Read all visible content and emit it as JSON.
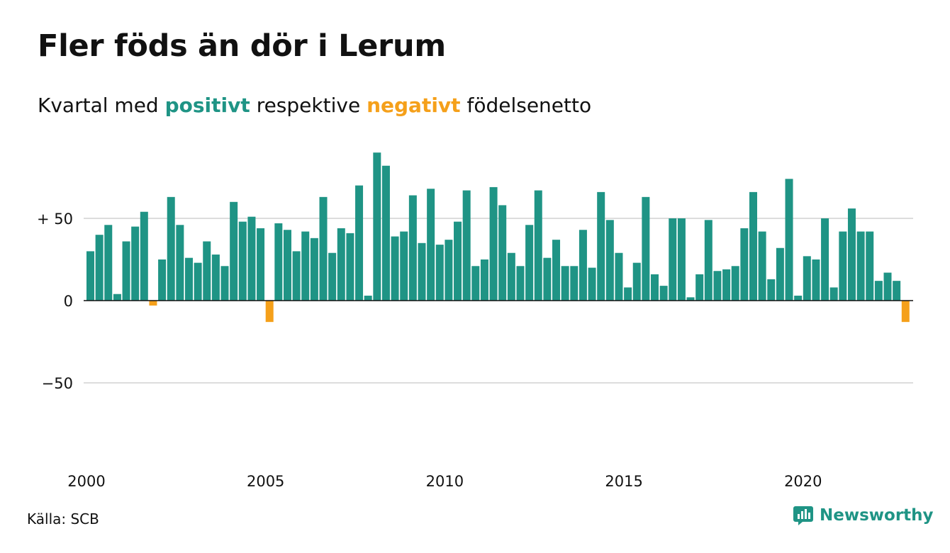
{
  "header": {
    "title": "Fler föds än dör i Lerum",
    "subtitle_prefix": "Kvartal med",
    "subtitle_positive": "positivt",
    "subtitle_middle": "respektive",
    "subtitle_negative": "negativt",
    "subtitle_suffix": "födelsenetto"
  },
  "footer": {
    "source": "Källa: SCB",
    "brand": "Newsworthy",
    "brand_icon": "newsworthy-logo-icon"
  },
  "colors": {
    "positive": "#1f9485",
    "negative": "#f5a01a",
    "grid": "#dddddd",
    "axis": "#111111"
  },
  "chart_data": {
    "type": "bar",
    "x_start": "2000 Q1",
    "x_step": "quarter",
    "ylim": [
      -100,
      90
    ],
    "y_ticks": [
      50,
      0,
      -50
    ],
    "y_tick_labels": [
      "+ 50",
      "0",
      "−50"
    ],
    "x_tick_labels": [
      "2000",
      "2005",
      "2010",
      "2015",
      "2020"
    ],
    "grid": true,
    "xlabel": "",
    "ylabel": "",
    "values": [
      30,
      40,
      46,
      4,
      36,
      45,
      54,
      -3,
      25,
      63,
      46,
      26,
      23,
      36,
      28,
      21,
      60,
      48,
      51,
      44,
      -13,
      47,
      43,
      30,
      42,
      38,
      63,
      29,
      44,
      41,
      70,
      3,
      90,
      82,
      39,
      42,
      64,
      35,
      68,
      34,
      37,
      48,
      67,
      21,
      25,
      69,
      58,
      29,
      21,
      46,
      67,
      26,
      37,
      21,
      21,
      43,
      20,
      66,
      49,
      29,
      8,
      23,
      63,
      16,
      9,
      50,
      50,
      2,
      16,
      49,
      18,
      19,
      21,
      44,
      66,
      42,
      13,
      32,
      74,
      3,
      27,
      25,
      50,
      8,
      42,
      56,
      42,
      42,
      12,
      17,
      12,
      -13
    ]
  }
}
